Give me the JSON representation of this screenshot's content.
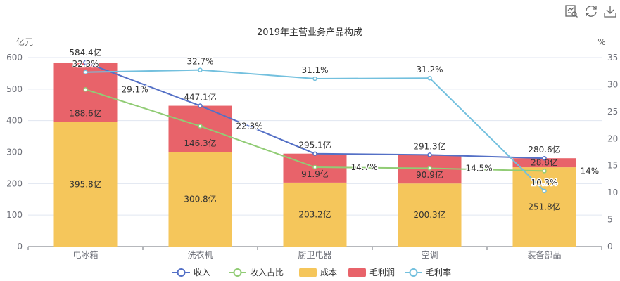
{
  "toolbar": {
    "items": [
      {
        "icon": "data-view-icon",
        "label": "数据视图"
      },
      {
        "icon": "refresh-icon",
        "label": "还原"
      },
      {
        "icon": "download-icon",
        "label": "保存为图片"
      }
    ]
  },
  "chart_data": {
    "type": "bar",
    "title": "2019年主营业务产品构成",
    "ylabel_left": "亿元",
    "ylabel_right": "%",
    "categories": [
      "电冰箱",
      "洗衣机",
      "厨卫电器",
      "空调",
      "装备部品"
    ],
    "ylim_left": [
      0,
      600
    ],
    "yticks_left": [
      0,
      100,
      200,
      300,
      400,
      500,
      600
    ],
    "ylim_right": [
      0,
      35
    ],
    "yticks_right": [
      0,
      5,
      10,
      15,
      20,
      25,
      30,
      35
    ],
    "grid": true,
    "legend_position": "bottom",
    "colors": {
      "revenue": "#5470c6",
      "revenue_share": "#91cc75",
      "cost": "#f5c65b",
      "profit": "#e8636a",
      "margin": "#73c0de"
    },
    "series": [
      {
        "name": "收入",
        "type": "line",
        "axis": "left",
        "values": [
          584.4,
          447.1,
          295.1,
          291.3,
          280.6
        ],
        "labels": [
          "584.4亿",
          "447.1亿",
          "295.1亿",
          "291.3亿",
          "280.6亿"
        ]
      },
      {
        "name": "收入占比",
        "type": "line",
        "axis": "right",
        "values": [
          29.1,
          22.3,
          14.7,
          14.5,
          14
        ],
        "labels": [
          "29.1%",
          "22.3%",
          "14.7%",
          "14.5%",
          "14%"
        ]
      },
      {
        "name": "成本",
        "type": "bar",
        "stack": "total",
        "axis": "left",
        "values": [
          395.8,
          300.8,
          203.2,
          200.3,
          251.8
        ],
        "labels": [
          "395.8亿",
          "300.8亿",
          "203.2亿",
          "200.3亿",
          "251.8亿"
        ]
      },
      {
        "name": "毛利润",
        "type": "bar",
        "stack": "total",
        "axis": "left",
        "values": [
          188.6,
          146.3,
          91.9,
          90.9,
          28.8
        ],
        "labels": [
          "188.6亿",
          "146.3亿",
          "91.9亿",
          "90.9亿",
          "28.8亿"
        ]
      },
      {
        "name": "毛利率",
        "type": "line",
        "axis": "right",
        "values": [
          32.3,
          32.7,
          31.1,
          31.2,
          10.3
        ],
        "labels": [
          "32.3%",
          "32.7%",
          "31.1%",
          "31.2%",
          "10.3%"
        ]
      }
    ]
  }
}
